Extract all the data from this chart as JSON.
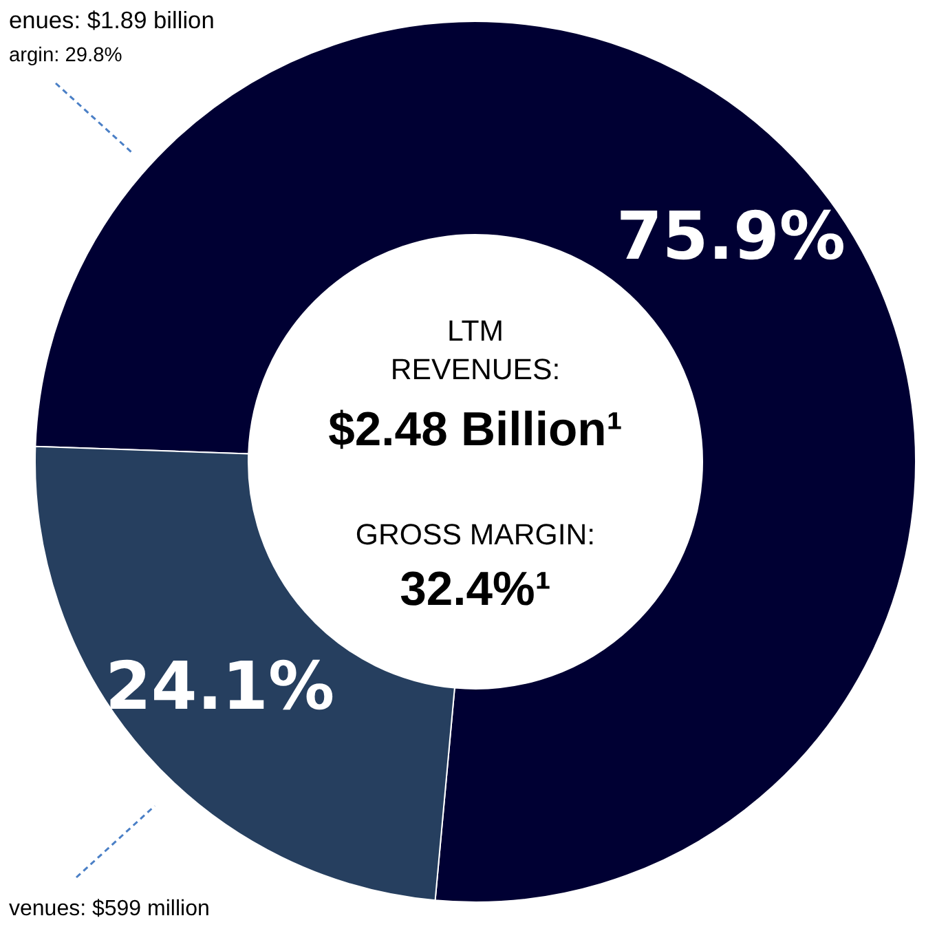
{
  "chart_data": {
    "type": "donut",
    "categories": [
      null,
      null
    ],
    "values": [
      75.9,
      24.1
    ],
    "colors": [
      "#000033",
      "#263f5f"
    ],
    "data_labels": true,
    "value_labels": [
      "75.9%",
      "24.1%"
    ],
    "annotations": [
      "enues: $1.89 billion",
      "argin: 29.8%",
      "venues: $599 million",
      "LTM",
      "REVENUES:",
      "$2.48 Billion¹",
      "GROSS MARGIN:",
      "32.4%¹"
    ]
  }
}
